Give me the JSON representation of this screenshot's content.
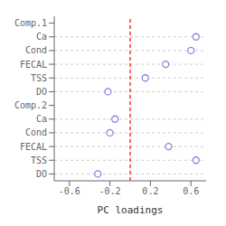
{
  "chart_data": {
    "type": "dot",
    "orientation": "horizontal",
    "categories": [
      "Comp.1",
      "Ca",
      "Cond",
      "FECAL",
      "TSS",
      "DO",
      "Comp.2",
      "Ca",
      "Cond",
      "FECAL",
      "TSS",
      "DO"
    ],
    "values": [
      null,
      0.65,
      0.6,
      0.35,
      0.15,
      -0.22,
      null,
      -0.15,
      -0.2,
      0.38,
      0.65,
      -0.32
    ],
    "xlabel": "PC loadings",
    "xlim": [
      -0.75,
      0.75
    ],
    "xticks": [
      -0.6,
      -0.2,
      0.2,
      0.6
    ],
    "grid": true,
    "marker": "circle",
    "reference_line": {
      "x": 0.0,
      "color": "#ff0000"
    }
  }
}
